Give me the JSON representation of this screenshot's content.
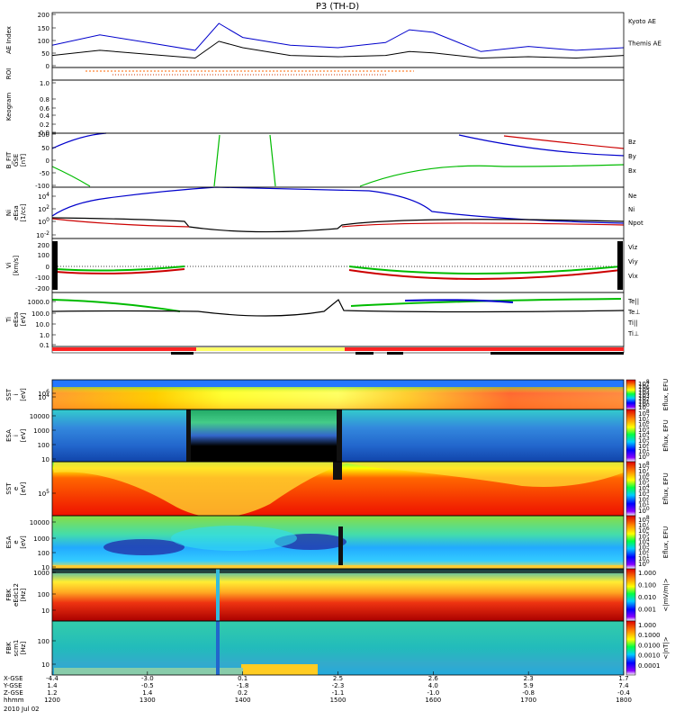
{
  "title": "P3 (TH-D)",
  "panels": [
    {
      "id": "ae",
      "ylabel": [
        "AE Index"
      ],
      "ticks": [
        "200",
        "150",
        "100",
        "50",
        "0"
      ],
      "legend": [
        {
          "text": "Kyoto AE",
          "color": "#0000cc"
        },
        {
          "text": "Themis AE",
          "color": "#000000"
        }
      ]
    },
    {
      "id": "roi",
      "ylabel": [
        "ROI"
      ],
      "ticks": [],
      "legend": []
    },
    {
      "id": "keogram",
      "ylabel": [
        "Keogram"
      ],
      "ticks": [
        "1.0",
        "0.8",
        "0.6",
        "0.4",
        "0.2",
        "0.0"
      ],
      "legend": []
    },
    {
      "id": "bfield",
      "ylabel": [
        "B_FIT",
        "GSE",
        "[nT]"
      ],
      "ticks": [
        "100",
        "50",
        "0",
        "-50",
        "-100"
      ],
      "legend": [
        {
          "text": "Bz",
          "color": "#cc0000"
        },
        {
          "text": "By",
          "color": "#00bb00"
        },
        {
          "text": "Bx",
          "color": "#0000cc"
        }
      ]
    },
    {
      "id": "density",
      "ylabel": [
        "Ni",
        "eEsa",
        "[1/cc]"
      ],
      "ticks": [
        "10^4",
        "10^2",
        "10^0",
        "10^-2"
      ],
      "legend": [
        {
          "text": "Ne",
          "color": "#cc0000"
        },
        {
          "text": "Ni",
          "color": "#000000"
        },
        {
          "text": "Npot",
          "color": "#0000cc"
        }
      ]
    },
    {
      "id": "velocity",
      "ylabel": [
        "Vi",
        "[km/s]"
      ],
      "ticks": [
        "200",
        "100",
        "0",
        "-100",
        "-200"
      ],
      "legend": [
        {
          "text": "Viz",
          "color": "#cc0000"
        },
        {
          "text": "Viy",
          "color": "#00bb00"
        },
        {
          "text": "Vix",
          "color": "#0000cc"
        }
      ]
    },
    {
      "id": "temp",
      "ylabel": [
        "Ti",
        "eEsa",
        "[eV]"
      ],
      "ticks": [
        "1000.0",
        "100.0",
        "10.0",
        "1.0",
        "0.1"
      ],
      "legend": [
        {
          "text": "Te||",
          "color": "#000000"
        },
        {
          "text": "Te⊥",
          "color": "#cc0000"
        },
        {
          "text": "Ti||",
          "color": "#00bb00"
        },
        {
          "text": "Ti⊥",
          "color": "#0000cc"
        }
      ]
    },
    {
      "id": "sst_i",
      "ylabel": [
        "SST",
        "i",
        "[eV]"
      ],
      "ticks": [
        "10^6",
        "10^4"
      ],
      "colorbar": [
        "10^8",
        "10^7",
        "10^6",
        "10^5",
        "10^4",
        "10^3",
        "10^2",
        "10^1",
        "10^0"
      ],
      "cbunit": "Eflux, EFU"
    },
    {
      "id": "esa_i",
      "ylabel": [
        "ESA",
        "i",
        "[eV]"
      ],
      "ticks": [
        "10000",
        "1000",
        "100",
        "10"
      ],
      "colorbar": [
        "10^8",
        "10^7",
        "10^6",
        "10^5",
        "10^4",
        "10^3",
        "10^2",
        "10^1",
        "10^0"
      ],
      "cbunit": "Eflux, EFU"
    },
    {
      "id": "sst_e",
      "ylabel": [
        "SST",
        "e",
        "[eV]"
      ],
      "ticks": [
        "10^5"
      ],
      "colorbar": [
        "10^8",
        "10^7",
        "10^6",
        "10^5",
        "10^4",
        "10^3",
        "10^2",
        "10^1",
        "10^0"
      ],
      "cbunit": "Eflux, EFU"
    },
    {
      "id": "esa_e",
      "ylabel": [
        "ESA",
        "e",
        "[eV]"
      ],
      "ticks": [
        "10000",
        "1000",
        "100",
        "10"
      ],
      "colorbar": [
        "10^8",
        "10^7",
        "10^6",
        "10^5",
        "10^4",
        "10^3",
        "10^2",
        "10^1",
        "10^0"
      ],
      "cbunit": "Eflux, EFU"
    },
    {
      "id": "fbk_e",
      "ylabel": [
        "FBK",
        "eEdc12",
        "[Hz]"
      ],
      "ticks": [
        "1000",
        "100",
        "10"
      ],
      "colorbar": [
        "1.000",
        "0.100",
        "0.010",
        "0.001"
      ],
      "cbunit": "<|mV/m|>"
    },
    {
      "id": "fbk_b",
      "ylabel": [
        "FBK",
        "scm1",
        "[Hz]"
      ],
      "ticks": [
        "100",
        "10"
      ],
      "colorbar": [
        "1.000",
        "0.1000",
        "0.0100",
        "0.0010",
        "0.0001"
      ],
      "cbunit": "<|nT|>"
    }
  ],
  "xaxis": {
    "row_labels": [
      "X-GSE",
      "Y-GSE",
      "Z-GSE",
      "hhmm"
    ],
    "date": "2010 Jul 02",
    "columns": [
      {
        "x": "-4.4",
        "y": "1.4",
        "z": "1.2",
        "t": "1200"
      },
      {
        "x": "-3.0",
        "y": "-0.5",
        "z": "1.4",
        "t": "1300"
      },
      {
        "x": "0.1",
        "y": "-1.8",
        "z": "0.2",
        "t": "1400"
      },
      {
        "x": "2.5",
        "y": "-2.3",
        "z": "-1.1",
        "t": "1500"
      },
      {
        "x": "2.6",
        "y": "4.0",
        "z": "-1.0",
        "t": "1600"
      },
      {
        "x": "2.3",
        "y": "5.9",
        "z": "-0.8",
        "t": "1700"
      },
      {
        "x": "1.7",
        "y": "7.4",
        "z": "-0.4",
        "t": "1800"
      }
    ]
  },
  "chart_data": [
    {
      "type": "line",
      "title": "AE Index",
      "x": [
        1200,
        1230,
        1300,
        1330,
        1345,
        1400,
        1430,
        1500,
        1530,
        1545,
        1600,
        1630,
        1700,
        1730,
        1800
      ],
      "series": [
        {
          "name": "Kyoto AE",
          "values": [
            80,
            120,
            90,
            60,
            165,
            110,
            80,
            70,
            90,
            140,
            130,
            55,
            75,
            60,
            70
          ]
        },
        {
          "name": "Themis AE",
          "values": [
            40,
            60,
            45,
            30,
            95,
            70,
            40,
            35,
            40,
            55,
            50,
            30,
            35,
            30,
            40
          ]
        }
      ],
      "ylim": [
        0,
        200
      ]
    },
    {
      "type": "line",
      "title": "B_FIT GSE",
      "series": [
        {
          "name": "Bz"
        },
        {
          "name": "By"
        },
        {
          "name": "Bx"
        }
      ],
      "ylim": [
        -100,
        100
      ]
    },
    {
      "type": "line",
      "title": "Ni eEsa",
      "series": [
        {
          "name": "Ne"
        },
        {
          "name": "Ni"
        },
        {
          "name": "Npot"
        }
      ]
    },
    {
      "type": "line",
      "title": "Vi",
      "series": [
        {
          "name": "Viz"
        },
        {
          "name": "Viy"
        },
        {
          "name": "Vix"
        }
      ],
      "ylim": [
        -250,
        250
      ]
    },
    {
      "type": "line",
      "title": "Ti eEsa",
      "series": [
        {
          "name": "Te||"
        },
        {
          "name": "Te⊥"
        },
        {
          "name": "Ti||"
        },
        {
          "name": "Ti⊥"
        }
      ]
    },
    {
      "type": "heatmap",
      "title": "SST i"
    },
    {
      "type": "heatmap",
      "title": "ESA i"
    },
    {
      "type": "heatmap",
      "title": "SST e"
    },
    {
      "type": "heatmap",
      "title": "ESA e"
    },
    {
      "type": "heatmap",
      "title": "FBK eEdc12"
    },
    {
      "type": "heatmap",
      "title": "FBK scm1"
    }
  ]
}
